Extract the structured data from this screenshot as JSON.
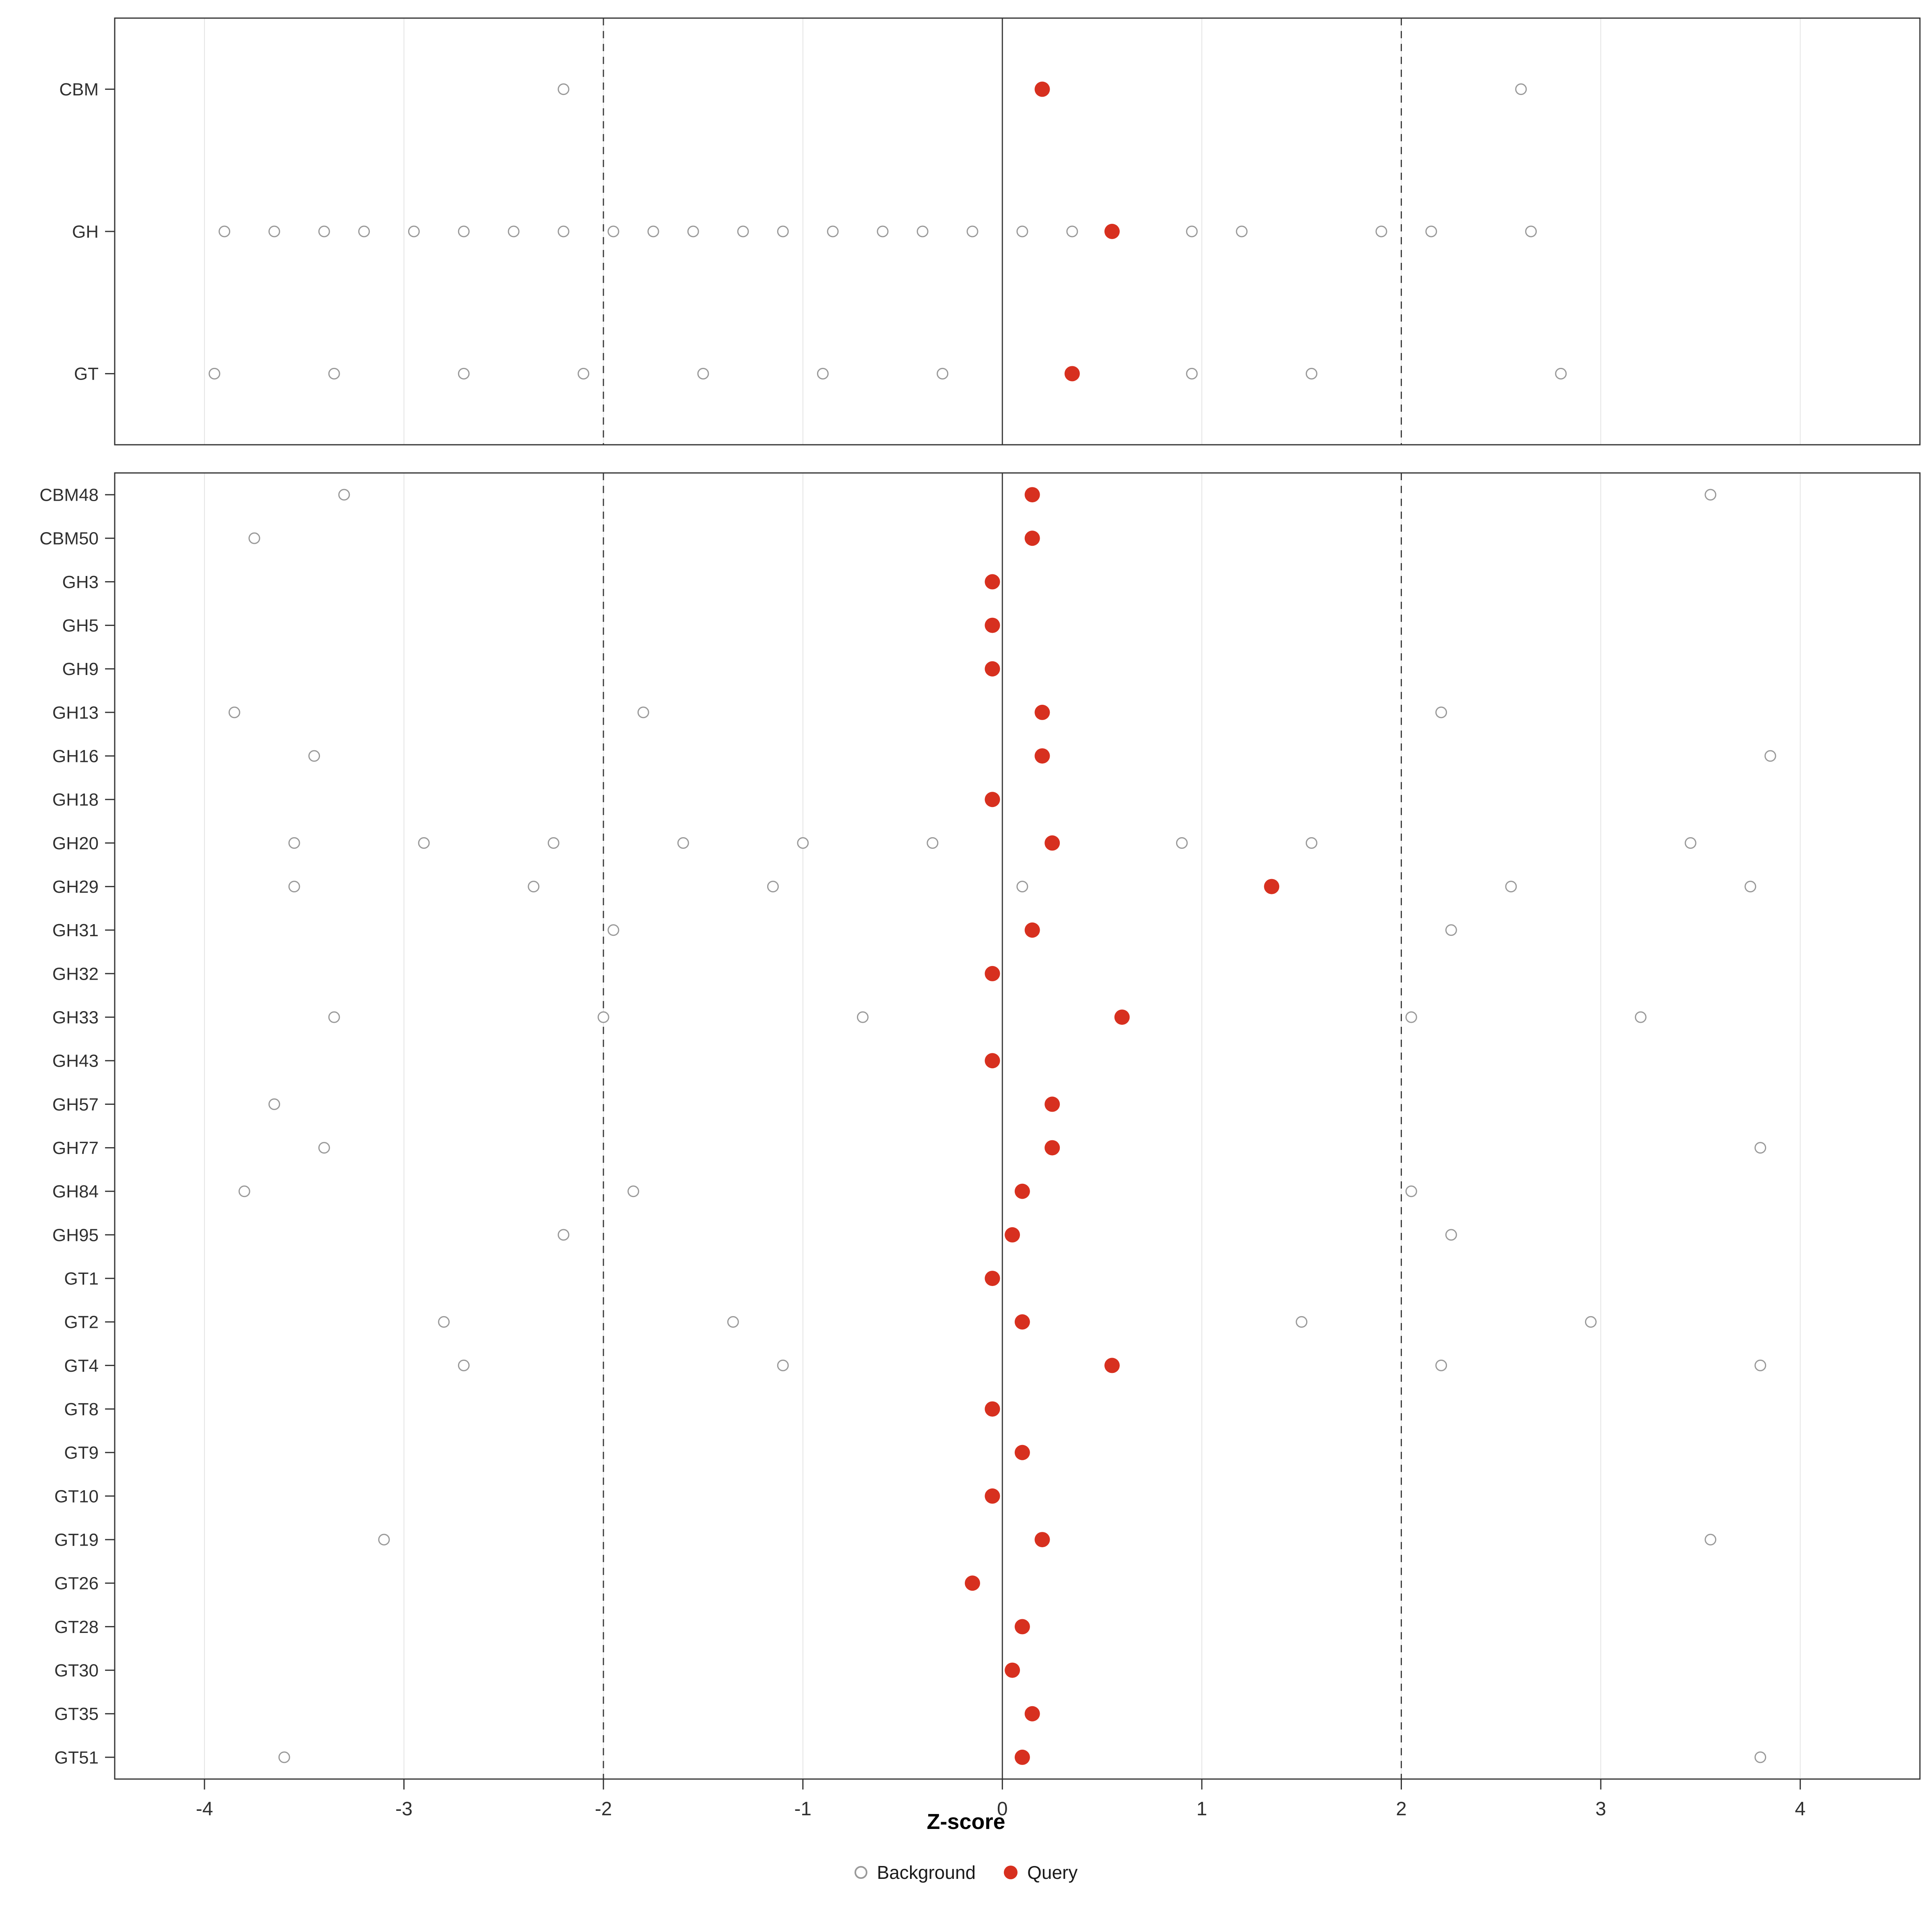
{
  "colors": {
    "query": "#D7301F",
    "background_stroke": "#999999",
    "grid": "#E4E4E4",
    "panel_border": "#333333",
    "ref_line": "#3C3C3C",
    "axis": "#333333",
    "text": "#303030"
  },
  "chart_data": {
    "type": "scatter",
    "title": "",
    "xlabel": "Z-score",
    "ylabel": "",
    "xlim": [
      -4.45,
      4.6
    ],
    "ticks": [
      -4,
      -3,
      -2,
      -1,
      0,
      1,
      2,
      3,
      4
    ],
    "vlines": [
      {
        "x": -2,
        "style": "dashed"
      },
      {
        "x": 0,
        "style": "solid"
      },
      {
        "x": 2,
        "style": "dashed"
      }
    ],
    "legend": [
      "Background",
      "Query"
    ],
    "legend_position": "bottom",
    "grid": true,
    "panels": [
      {
        "name": "family-class-summary",
        "rows": [
          {
            "label": "CBM",
            "background": [
              -2.2,
              2.6
            ],
            "query": [
              0.2
            ]
          },
          {
            "label": "GH",
            "background": [
              -3.9,
              -3.65,
              -3.4,
              -3.2,
              -2.95,
              -2.7,
              -2.45,
              -2.2,
              -1.95,
              -1.75,
              -1.55,
              -1.3,
              -1.1,
              -0.85,
              -0.6,
              -0.4,
              -0.15,
              0.1,
              0.35,
              0.95,
              1.2,
              1.9,
              2.15,
              2.65
            ],
            "query": [
              0.55
            ]
          },
          {
            "label": "GT",
            "background": [
              -3.95,
              -3.35,
              -2.7,
              -2.1,
              -1.5,
              -0.9,
              -0.3,
              0.95,
              1.55,
              2.8
            ],
            "query": [
              0.35
            ]
          }
        ]
      },
      {
        "name": "individual-families",
        "rows": [
          {
            "label": "CBM48",
            "background": [
              -3.3,
              3.55
            ],
            "query": [
              0.15
            ]
          },
          {
            "label": "CBM50",
            "background": [
              -3.75
            ],
            "query": [
              0.15
            ]
          },
          {
            "label": "GH3",
            "background": [],
            "query": [
              -0.05
            ]
          },
          {
            "label": "GH5",
            "background": [],
            "query": [
              -0.05
            ]
          },
          {
            "label": "GH9",
            "background": [],
            "query": [
              -0.05
            ]
          },
          {
            "label": "GH13",
            "background": [
              -3.85,
              -1.8,
              2.2
            ],
            "query": [
              0.2
            ]
          },
          {
            "label": "GH16",
            "background": [
              -3.45,
              3.85
            ],
            "query": [
              0.2
            ]
          },
          {
            "label": "GH18",
            "background": [],
            "query": [
              -0.05
            ]
          },
          {
            "label": "GH20",
            "background": [
              -3.55,
              -2.9,
              -2.25,
              -1.6,
              -1.0,
              -0.35,
              0.9,
              1.55,
              3.45
            ],
            "query": [
              0.25
            ]
          },
          {
            "label": "GH29",
            "background": [
              -3.55,
              -2.35,
              -1.15,
              0.1,
              2.55,
              3.75
            ],
            "query": [
              1.35
            ]
          },
          {
            "label": "GH31",
            "background": [
              -1.95,
              2.25
            ],
            "query": [
              0.15
            ]
          },
          {
            "label": "GH32",
            "background": [],
            "query": [
              -0.05
            ]
          },
          {
            "label": "GH33",
            "background": [
              -3.35,
              -2.0,
              -0.7,
              2.05,
              3.2
            ],
            "query": [
              0.6
            ]
          },
          {
            "label": "GH43",
            "background": [],
            "query": [
              -0.05
            ]
          },
          {
            "label": "GH57",
            "background": [
              -3.65
            ],
            "query": [
              0.25
            ]
          },
          {
            "label": "GH77",
            "background": [
              -3.4,
              3.8
            ],
            "query": [
              0.25
            ]
          },
          {
            "label": "GH84",
            "background": [
              -3.8,
              -1.85,
              2.05
            ],
            "query": [
              0.1
            ]
          },
          {
            "label": "GH95",
            "background": [
              -2.2,
              2.25
            ],
            "query": [
              0.05
            ]
          },
          {
            "label": "GT1",
            "background": [],
            "query": [
              -0.05
            ]
          },
          {
            "label": "GT2",
            "background": [
              -2.8,
              -1.35,
              1.5,
              2.95
            ],
            "query": [
              0.1
            ]
          },
          {
            "label": "GT4",
            "background": [
              -2.7,
              -1.1,
              2.2,
              3.8
            ],
            "query": [
              0.55
            ]
          },
          {
            "label": "GT8",
            "background": [],
            "query": [
              -0.05
            ]
          },
          {
            "label": "GT9",
            "background": [],
            "query": [
              0.1
            ]
          },
          {
            "label": "GT10",
            "background": [],
            "query": [
              -0.05
            ]
          },
          {
            "label": "GT19",
            "background": [
              -3.1,
              3.55
            ],
            "query": [
              0.2
            ]
          },
          {
            "label": "GT26",
            "background": [],
            "query": [
              -0.15
            ]
          },
          {
            "label": "GT28",
            "background": [],
            "query": [
              0.1
            ]
          },
          {
            "label": "GT30",
            "background": [],
            "query": [
              0.05
            ]
          },
          {
            "label": "GT35",
            "background": [],
            "query": [
              0.15
            ]
          },
          {
            "label": "GT51",
            "background": [
              -3.6,
              3.8
            ],
            "query": [
              0.1
            ]
          }
        ]
      }
    ]
  }
}
